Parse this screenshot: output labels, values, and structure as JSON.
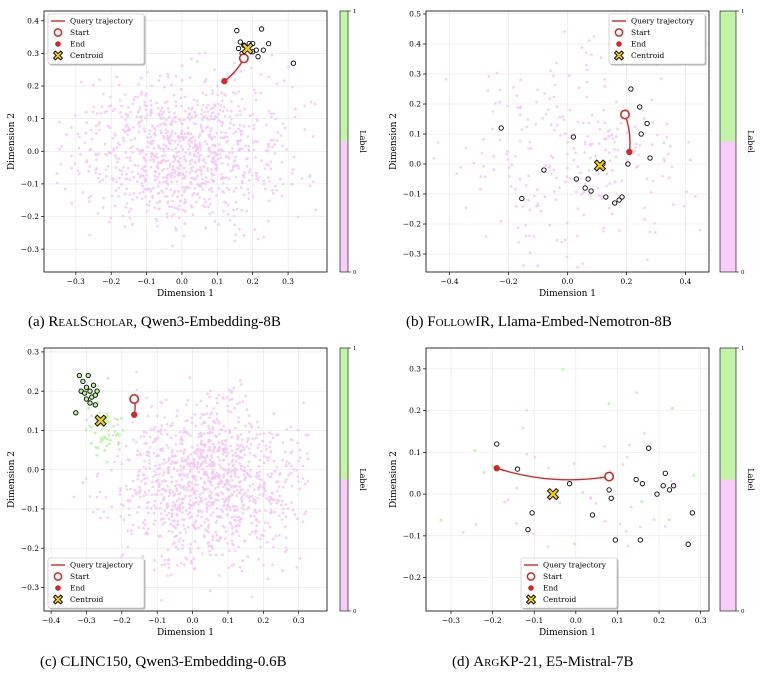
{
  "captions": [
    {
      "label": "(a)",
      "dataset": "RealScholar",
      "model": "Qwen3-Embedding-8B",
      "smallcaps": true
    },
    {
      "label": "(b)",
      "dataset": "FollowIR",
      "model": "Llama-Embed-Nemotron-8B",
      "smallcaps": true
    },
    {
      "label": "(c)",
      "dataset": "CLINC150",
      "model": "Qwen3-Embedding-0.6B",
      "smallcaps": false
    },
    {
      "label": "(d)",
      "dataset": "ArgKP-21",
      "model": "E5-Mistral-7B",
      "smallcaps": true
    }
  ],
  "colors": {
    "query_line": "#d62728",
    "background_points": "#f5c6f5",
    "label1_points": "#b8f5a0",
    "colorbar_top": "#c2f5a6",
    "colorbar_bottom": "#f9ccf9",
    "centroid_fill": "#f5d000",
    "neighbor_edge": "#000000",
    "neighbor_fill_green": "#b8f5a0"
  },
  "chart_data": [
    {
      "type": "scatter",
      "title": "",
      "xlabel": "Dimension 1",
      "ylabel": "Dimension 2",
      "colorbar_label": "Label",
      "colorbar_ticks": [
        "0",
        "1"
      ],
      "xlim": [
        -0.39,
        0.41
      ],
      "ylim": [
        -0.37,
        0.43
      ],
      "xticks": [
        -0.3,
        -0.2,
        -0.1,
        0.0,
        0.1,
        0.2,
        0.3
      ],
      "yticks": [
        -0.3,
        -0.2,
        -0.1,
        0.0,
        0.1,
        0.2,
        0.3,
        0.4
      ],
      "xtick_labels": [
        "−0.3",
        "−0.2",
        "−0.1",
        "0.0",
        "0.1",
        "0.2",
        "0.3"
      ],
      "ytick_labels": [
        "−0.3",
        "−0.2",
        "−0.1",
        "0.0",
        "0.1",
        "0.2",
        "0.3",
        "0.4"
      ],
      "grid": true,
      "legend": {
        "placement": "top-left",
        "entries": [
          "Query trajectory",
          "Start",
          "End",
          "Centroid"
        ]
      },
      "background_cloud": {
        "label": 0,
        "n": 1000,
        "center": [
          0.0,
          0.0
        ],
        "spread": [
          0.15,
          0.11
        ],
        "bounds": [
          -0.36,
          0.38,
          -0.33,
          0.4
        ]
      },
      "start": [
        0.175,
        0.285
      ],
      "end": [
        0.12,
        0.215
      ],
      "centroid": [
        0.185,
        0.315
      ],
      "neighbors": [
        [
          0.155,
          0.37
        ],
        [
          0.165,
          0.335
        ],
        [
          0.175,
          0.325
        ],
        [
          0.19,
          0.33
        ],
        [
          0.2,
          0.33
        ],
        [
          0.21,
          0.31
        ],
        [
          0.215,
          0.29
        ],
        [
          0.225,
          0.375
        ],
        [
          0.23,
          0.31
        ],
        [
          0.245,
          0.33
        ],
        [
          0.17,
          0.3
        ],
        [
          0.2,
          0.305
        ],
        [
          0.16,
          0.315
        ],
        [
          0.315,
          0.27
        ]
      ]
    },
    {
      "type": "scatter",
      "title": "",
      "xlabel": "Dimension 1",
      "ylabel": "Dimension 2",
      "colorbar_label": "Label",
      "colorbar_ticks": [
        "0",
        "1"
      ],
      "xlim": [
        -0.48,
        0.48
      ],
      "ylim": [
        -0.36,
        0.51
      ],
      "xticks": [
        -0.4,
        -0.2,
        0.0,
        0.2,
        0.4
      ],
      "yticks": [
        -0.3,
        -0.2,
        -0.1,
        0.0,
        0.1,
        0.2,
        0.3,
        0.4,
        0.5
      ],
      "xtick_labels": [
        "−0.4",
        "−0.2",
        "0.0",
        "0.2",
        "0.4"
      ],
      "ytick_labels": [
        "−0.3",
        "−0.2",
        "−0.1",
        "0.0",
        "0.1",
        "0.2",
        "0.3",
        "0.4",
        "0.5"
      ],
      "grid": true,
      "legend": {
        "placement": "top-right",
        "entries": [
          "Query trajectory",
          "Start",
          "End",
          "Centroid"
        ]
      },
      "background_cloud": {
        "label": 0,
        "n": 260,
        "center": [
          0.0,
          0.0
        ],
        "spread": [
          0.2,
          0.17
        ],
        "bounds": [
          -0.46,
          0.46,
          -0.35,
          0.5
        ]
      },
      "start": [
        0.195,
        0.165
      ],
      "end": [
        0.21,
        0.04
      ],
      "centroid": [
        0.11,
        -0.005
      ],
      "neighbors": [
        [
          -0.225,
          0.12
        ],
        [
          -0.155,
          -0.115
        ],
        [
          -0.08,
          -0.02
        ],
        [
          0.02,
          0.09
        ],
        [
          0.03,
          -0.05
        ],
        [
          0.06,
          -0.08
        ],
        [
          0.07,
          -0.05
        ],
        [
          0.08,
          -0.09
        ],
        [
          0.12,
          0.0
        ],
        [
          0.13,
          -0.11
        ],
        [
          0.16,
          -0.13
        ],
        [
          0.175,
          -0.12
        ],
        [
          0.185,
          -0.11
        ],
        [
          0.205,
          0.0
        ],
        [
          0.215,
          0.25
        ],
        [
          0.245,
          0.19
        ],
        [
          0.25,
          0.1
        ],
        [
          0.27,
          0.135
        ],
        [
          0.28,
          0.02
        ]
      ]
    },
    {
      "type": "scatter",
      "title": "",
      "xlabel": "Dimension 1",
      "ylabel": "Dimension 2",
      "colorbar_label": "Label",
      "colorbar_ticks": [
        "0",
        "1"
      ],
      "xlim": [
        -0.42,
        0.38
      ],
      "ylim": [
        -0.36,
        0.31
      ],
      "xticks": [
        -0.4,
        -0.3,
        -0.2,
        -0.1,
        0.0,
        0.1,
        0.2,
        0.3
      ],
      "yticks": [
        -0.3,
        -0.2,
        -0.1,
        0.0,
        0.1,
        0.2,
        0.3
      ],
      "xtick_labels": [
        "−0.4",
        "−0.3",
        "−0.2",
        "−0.1",
        "0.0",
        "0.1",
        "0.2",
        "0.3"
      ],
      "ytick_labels": [
        "−0.3",
        "−0.2",
        "−0.1",
        "0.0",
        "0.1",
        "0.2",
        "0.3"
      ],
      "grid": true,
      "legend": {
        "placement": "bottom-left",
        "entries": [
          "Query trajectory",
          "Start",
          "End",
          "Centroid"
        ]
      },
      "background_cloud": {
        "label": 0,
        "n": 1200,
        "center": [
          0.05,
          -0.03
        ],
        "spread": [
          0.13,
          0.1
        ],
        "bounds": [
          -0.4,
          0.33,
          -0.34,
          0.28
        ]
      },
      "green_cluster": {
        "label": 1,
        "n": 50,
        "center": [
          -0.25,
          0.1
        ],
        "spread": [
          0.025,
          0.035
        ]
      },
      "start": [
        -0.165,
        0.18
      ],
      "end": [
        -0.165,
        0.14
      ],
      "centroid": [
        -0.26,
        0.125
      ],
      "neighbors": [
        [
          -0.33,
          0.145
        ],
        [
          -0.32,
          0.24
        ],
        [
          -0.315,
          0.2
        ],
        [
          -0.31,
          0.225
        ],
        [
          -0.305,
          0.195
        ],
        [
          -0.3,
          0.18
        ],
        [
          -0.3,
          0.21
        ],
        [
          -0.295,
          0.24
        ],
        [
          -0.29,
          0.17
        ],
        [
          -0.29,
          0.2
        ],
        [
          -0.285,
          0.185
        ],
        [
          -0.28,
          0.215
        ],
        [
          -0.275,
          0.19
        ],
        [
          -0.275,
          0.165
        ],
        [
          -0.27,
          0.2
        ]
      ],
      "neighbor_fill": "green"
    },
    {
      "type": "scatter",
      "title": "",
      "xlabel": "Dimension 1",
      "ylabel": "Dimension 2",
      "colorbar_label": "Label",
      "colorbar_ticks": [
        "0",
        "1"
      ],
      "xlim": [
        -0.36,
        0.32
      ],
      "ylim": [
        -0.28,
        0.35
      ],
      "xticks": [
        -0.3,
        -0.2,
        -0.1,
        0.0,
        0.1,
        0.2,
        0.3
      ],
      "yticks": [
        -0.2,
        -0.1,
        0.0,
        0.1,
        0.2,
        0.3
      ],
      "xtick_labels": [
        "−0.3",
        "−0.2",
        "−0.1",
        "0.0",
        "0.1",
        "0.2",
        "0.3"
      ],
      "ytick_labels": [
        "−0.2",
        "−0.1",
        "0.0",
        "0.1",
        "0.2",
        "0.3"
      ],
      "grid": true,
      "legend": {
        "placement": "bottom-center",
        "entries": [
          "Query trajectory",
          "Start",
          "End",
          "Centroid"
        ]
      },
      "background_cloud": {
        "label": 0,
        "n": 40,
        "center": [
          0.0,
          0.0
        ],
        "spread": [
          0.18,
          0.14
        ],
        "bounds": [
          -0.34,
          0.3,
          -0.26,
          0.33
        ]
      },
      "green_cluster": {
        "label": 1,
        "n": 18,
        "center": [
          0.0,
          0.0
        ],
        "spread": [
          0.2,
          0.15
        ]
      },
      "start": [
        0.08,
        0.042
      ],
      "end": [
        -0.19,
        0.062
      ],
      "centroid": [
        -0.055,
        0.0
      ],
      "neighbors": [
        [
          -0.19,
          0.12
        ],
        [
          -0.14,
          0.06
        ],
        [
          -0.115,
          -0.085
        ],
        [
          -0.105,
          -0.045
        ],
        [
          -0.015,
          0.025
        ],
        [
          0.04,
          -0.05
        ],
        [
          0.08,
          0.01
        ],
        [
          0.085,
          -0.01
        ],
        [
          0.095,
          -0.11
        ],
        [
          0.145,
          0.035
        ],
        [
          0.155,
          -0.11
        ],
        [
          0.16,
          0.025
        ],
        [
          0.175,
          0.11
        ],
        [
          0.195,
          0.0
        ],
        [
          0.21,
          0.02
        ],
        [
          0.215,
          0.05
        ],
        [
          0.225,
          0.01
        ],
        [
          0.235,
          0.02
        ],
        [
          0.27,
          -0.12
        ],
        [
          0.28,
          -0.045
        ]
      ]
    }
  ]
}
